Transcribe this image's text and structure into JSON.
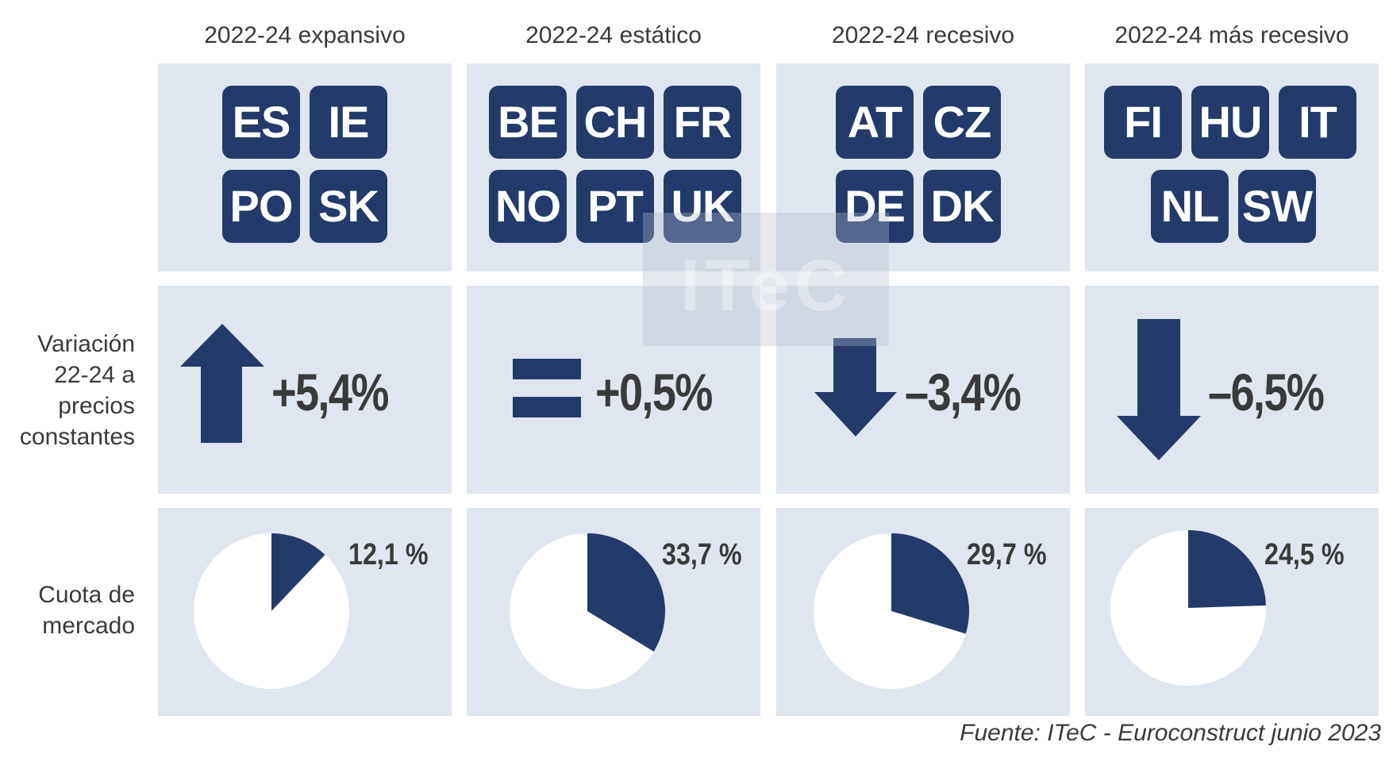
{
  "columns": [
    {
      "title": "2022-24 expansivo",
      "countries": [
        "ES",
        "IE",
        "PO",
        "SK"
      ],
      "variation": "+5,4%",
      "share_label": "12,1 %",
      "trend": "up"
    },
    {
      "title": "2022-24 estático",
      "countries": [
        "BE",
        "CH",
        "FR",
        "NO",
        "PT",
        "UK"
      ],
      "variation": "+0,5%",
      "share_label": "33,7 %",
      "trend": "equal"
    },
    {
      "title": "2022-24 recesivo",
      "countries": [
        "AT",
        "CZ",
        "DE",
        "DK"
      ],
      "variation": "–3,4%",
      "share_label": "29,7 %",
      "trend": "down"
    },
    {
      "title": "2022-24 más recesivo",
      "countries": [
        "FI",
        "HU",
        "IT",
        "NL",
        "SW"
      ],
      "variation": "–6,5%",
      "share_label": "24,5 %",
      "trend": "down"
    }
  ],
  "row_labels": {
    "variation": [
      "Variación",
      "22-24 a",
      "precios",
      "constantes"
    ],
    "share": [
      "Cuota de",
      "mercado"
    ]
  },
  "watermark": "ITeC",
  "source": "Fuente: ITeC - Euroconstruct junio 2023",
  "colors": {
    "accent": "#243a6b",
    "panel": "#dfe6ef",
    "text": "#3a3a3a"
  },
  "chart_data": {
    "type": "pie",
    "categories": [
      "2022-24 expansivo",
      "2022-24 estático",
      "2022-24 recesivo",
      "2022-24 más recesivo"
    ],
    "values": [
      12.1,
      33.7,
      29.7,
      24.5
    ],
    "variation_pct": [
      5.4,
      0.5,
      -3.4,
      -6.5
    ]
  }
}
